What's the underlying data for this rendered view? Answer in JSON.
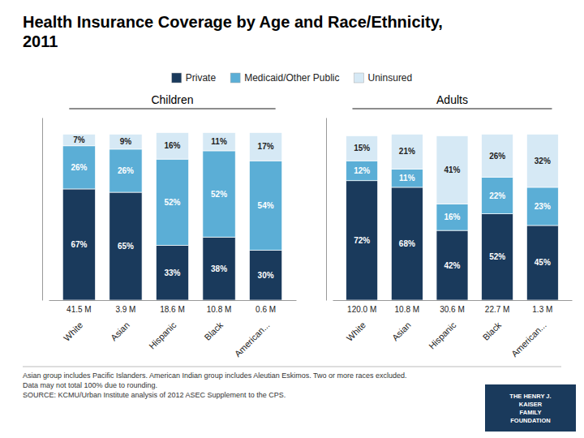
{
  "chart_data": [
    {
      "type": "bar",
      "title": "Health Insurance Coverage by Age and Race/Ethnicity,\n2011",
      "subtitle": "Children",
      "stacked": true,
      "data_labels": true,
      "tick_labels": "x",
      "legend": "top",
      "categories": [
        "White",
        "Asian",
        "Hispanic",
        "Black",
        "American..."
      ],
      "populations": [
        "41.5 M",
        "3.9 M",
        "18.6 M",
        "10.8 M",
        "0.6 M"
      ],
      "ylim": [
        0,
        110
      ],
      "series": [
        {
          "name": "Private",
          "color": "#1a3a5c",
          "values": [
            67,
            65,
            33,
            38,
            30
          ],
          "value_labels": [
            "67%",
            "65%",
            "33%",
            "38%",
            "30%"
          ]
        },
        {
          "name": "Medicaid/Other Public",
          "color": "#5baed6",
          "values": [
            26,
            26,
            52,
            52,
            54
          ],
          "value_labels": [
            "26%",
            "26%",
            "52%",
            "52%",
            "54%"
          ]
        },
        {
          "name": "Uninsured",
          "color": "#d6e9f5",
          "values": [
            7,
            9,
            16,
            11,
            17
          ],
          "value_labels": [
            "7%",
            "9%",
            "16%",
            "11%",
            "17%"
          ]
        }
      ],
      "annotations": [
        "Asian group includes Pacific Islanders. American Indian group includes Aleutian Eskimos. Two or more races excluded.\nData may not total 100% due to rounding.\nSOURCE: KCMU/Urban Institute analysis of 2012 ASEC Supplement to the CPS.",
        "THE HENRY J.\nKAISER\nFAMILY\nFOUNDATION"
      ]
    },
    {
      "type": "bar",
      "subtitle": "Adults",
      "stacked": true,
      "data_labels": true,
      "tick_labels": "x",
      "categories": [
        "White",
        "Asian",
        "Hispanic",
        "Black",
        "American..."
      ],
      "populations": [
        "120.0 M",
        "10.8 M",
        "30.6 M",
        "22.7 M",
        "1.3 M"
      ],
      "ylim": [
        0,
        110
      ],
      "series": [
        {
          "name": "Private",
          "color": "#1a3a5c",
          "values": [
            72,
            68,
            42,
            52,
            45
          ],
          "value_labels": [
            "72%",
            "68%",
            "42%",
            "52%",
            "45%"
          ]
        },
        {
          "name": "Medicaid/Other Public",
          "color": "#5baed6",
          "values": [
            12,
            11,
            16,
            22,
            23
          ],
          "value_labels": [
            "12%",
            "11%",
            "16%",
            "22%",
            "23%"
          ]
        },
        {
          "name": "Uninsured",
          "color": "#d6e9f5",
          "values": [
            15,
            21,
            41,
            26,
            32
          ],
          "value_labels": [
            "15%",
            "21%",
            "41%",
            "26%",
            "32%"
          ]
        }
      ]
    }
  ]
}
